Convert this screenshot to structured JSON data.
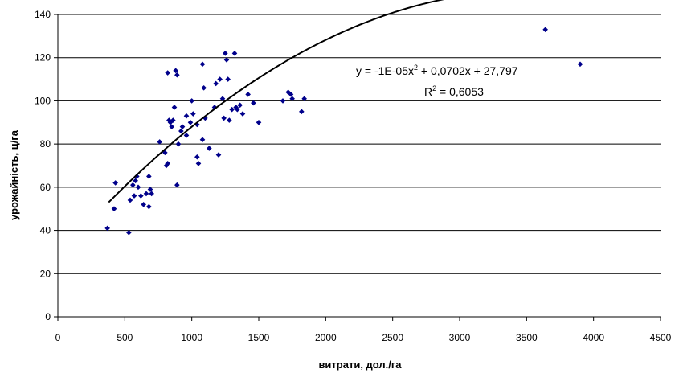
{
  "chart_data": {
    "type": "scatter",
    "xlabel": "витрати, дол./га",
    "ylabel": "урожайність, ц/га",
    "xlim": [
      0,
      4500
    ],
    "ylim": [
      0,
      140
    ],
    "x_ticks": [
      0,
      500,
      1000,
      1500,
      2000,
      2500,
      3000,
      3500,
      4000,
      4500
    ],
    "y_ticks": [
      0,
      20,
      40,
      60,
      80,
      100,
      120,
      140
    ],
    "grid": "horizontal",
    "legend": "none",
    "marker_color": "#00008b",
    "trendline_color": "#000000",
    "trendline": {
      "type": "polynomial",
      "degree": 2,
      "coefficients": [
        -1e-05,
        0.0702,
        27.797
      ],
      "x_range": [
        380,
        3900
      ]
    },
    "annotations": {
      "equation_prefix": "y = -1E-05x",
      "equation_exp": "2",
      "equation_suffix": " + 0,0702x + 27,797",
      "r2_prefix": "R",
      "r2_exp": "2",
      "r2_suffix": " = 0,6053"
    },
    "series": [
      {
        "points": [
          [
            370,
            41
          ],
          [
            420,
            50
          ],
          [
            430,
            62
          ],
          [
            530,
            39
          ],
          [
            540,
            54
          ],
          [
            560,
            61
          ],
          [
            570,
            56
          ],
          [
            580,
            63
          ],
          [
            590,
            65
          ],
          [
            600,
            60
          ],
          [
            620,
            56
          ],
          [
            640,
            52
          ],
          [
            660,
            57
          ],
          [
            680,
            51
          ],
          [
            680,
            65
          ],
          [
            690,
            59
          ],
          [
            700,
            57
          ],
          [
            760,
            81
          ],
          [
            800,
            76
          ],
          [
            810,
            70
          ],
          [
            820,
            71
          ],
          [
            820,
            113
          ],
          [
            830,
            91
          ],
          [
            840,
            90
          ],
          [
            850,
            88
          ],
          [
            860,
            91
          ],
          [
            870,
            97
          ],
          [
            880,
            114
          ],
          [
            890,
            112
          ],
          [
            890,
            61
          ],
          [
            900,
            80
          ],
          [
            920,
            86
          ],
          [
            930,
            88
          ],
          [
            960,
            84
          ],
          [
            960,
            93
          ],
          [
            990,
            90
          ],
          [
            1000,
            100
          ],
          [
            1010,
            94
          ],
          [
            1040,
            89
          ],
          [
            1040,
            74
          ],
          [
            1050,
            71
          ],
          [
            1080,
            117
          ],
          [
            1080,
            82
          ],
          [
            1090,
            106
          ],
          [
            1100,
            92
          ],
          [
            1130,
            78
          ],
          [
            1170,
            97
          ],
          [
            1180,
            108
          ],
          [
            1200,
            75
          ],
          [
            1210,
            110
          ],
          [
            1230,
            101
          ],
          [
            1240,
            92
          ],
          [
            1250,
            122
          ],
          [
            1260,
            119
          ],
          [
            1270,
            110
          ],
          [
            1280,
            91
          ],
          [
            1300,
            96
          ],
          [
            1320,
            122
          ],
          [
            1330,
            97
          ],
          [
            1340,
            96
          ],
          [
            1360,
            98
          ],
          [
            1380,
            94
          ],
          [
            1420,
            103
          ],
          [
            1460,
            99
          ],
          [
            1500,
            90
          ],
          [
            1680,
            100
          ],
          [
            1720,
            104
          ],
          [
            1740,
            103
          ],
          [
            1750,
            101
          ],
          [
            1820,
            95
          ],
          [
            1840,
            101
          ],
          [
            3640,
            133
          ],
          [
            3900,
            117
          ]
        ]
      }
    ]
  }
}
